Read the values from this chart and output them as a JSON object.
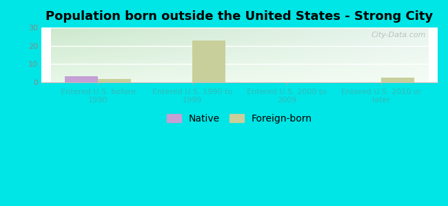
{
  "title": "Population born outside the United States - Strong City",
  "categories": [
    "Entered U.S. before\n1990",
    "Entered U.S. 1990 to\n1999",
    "Entered U.S. 2000 to\n2009",
    "Entered U.S. 2010 or\nlater"
  ],
  "native_values": [
    3.5,
    0,
    0,
    0
  ],
  "foreign_values": [
    2.0,
    23.0,
    0,
    2.5
  ],
  "native_color": "#c4a0d4",
  "foreign_color": "#c8cf9a",
  "background_color": "#00e5e5",
  "ylim": [
    0,
    30
  ],
  "yticks": [
    0,
    10,
    20,
    30
  ],
  "bar_width": 0.35,
  "title_fontsize": 13,
  "tick_label_fontsize": 8,
  "legend_fontsize": 10,
  "watermark": "City-Data.com",
  "xtick_color": "#33bbbb",
  "ytick_color": "#888888",
  "grid_color": "#ffffff",
  "plot_bg_color_topleft": "#cce8cc",
  "plot_bg_color_topright": "#e8f5f0",
  "plot_bg_color_bottom": "#e8f8e8"
}
